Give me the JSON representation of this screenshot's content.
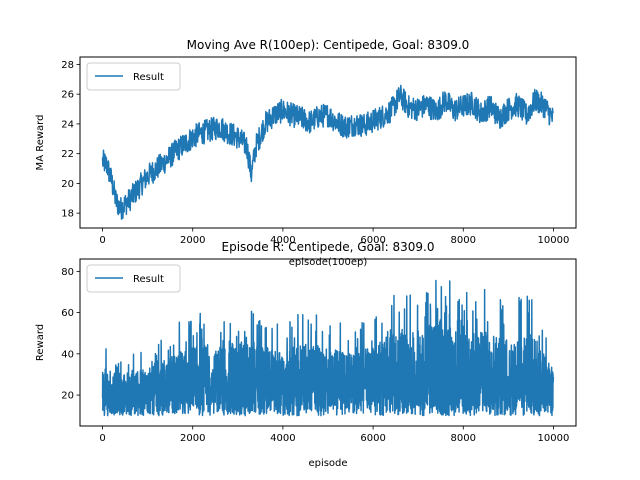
{
  "chart_data": [
    {
      "type": "line",
      "title": "Moving Ave R(100ep): Centipede, Goal: 8309.0",
      "xlabel": "episode(100ep)",
      "ylabel": "MA Reward",
      "xlim": [
        -500,
        10500
      ],
      "ylim": [
        17,
        28.5
      ],
      "xticks": [
        0,
        2000,
        4000,
        6000,
        8000,
        10000
      ],
      "yticks": [
        18,
        20,
        22,
        24,
        26,
        28
      ],
      "grid": false,
      "legend": "upper-left",
      "color": "#1f77b4",
      "series": [
        {
          "name": "Result",
          "x": [
            0,
            100,
            200,
            300,
            400,
            600,
            800,
            1000,
            1200,
            1400,
            1600,
            1800,
            2000,
            2200,
            2400,
            2600,
            2800,
            3000,
            3200,
            3300,
            3400,
            3600,
            3800,
            4000,
            4200,
            4400,
            4600,
            4800,
            5000,
            5200,
            5400,
            5600,
            5800,
            6000,
            6200,
            6400,
            6600,
            6800,
            7000,
            7200,
            7400,
            7600,
            7800,
            8000,
            8200,
            8400,
            8600,
            8800,
            9000,
            9200,
            9400,
            9600,
            9800,
            10000
          ],
          "y": [
            21.5,
            21.2,
            20.2,
            18.8,
            18.3,
            18.9,
            19.7,
            20.5,
            21.0,
            21.5,
            22.1,
            22.6,
            23.1,
            23.4,
            23.6,
            23.8,
            23.4,
            23.1,
            22.5,
            20.6,
            22.5,
            24.0,
            24.6,
            24.9,
            24.6,
            24.4,
            24.1,
            24.5,
            24.6,
            24.1,
            23.8,
            24.0,
            23.9,
            24.2,
            24.5,
            24.9,
            25.9,
            25.1,
            25.0,
            25.3,
            24.8,
            25.6,
            24.9,
            25.2,
            25.4,
            24.7,
            25.2,
            24.4,
            25.0,
            25.3,
            24.6,
            25.6,
            25.2,
            24.3
          ]
        }
      ]
    },
    {
      "type": "line",
      "title": "Episode R: Centipede, Goal: 8309.0",
      "xlabel": "episode",
      "ylabel": "Reward",
      "xlim": [
        -500,
        10500
      ],
      "ylim": [
        5,
        86
      ],
      "xticks": [
        0,
        2000,
        4000,
        6000,
        8000,
        10000
      ],
      "yticks": [
        20,
        40,
        60,
        80
      ],
      "grid": false,
      "legend": "upper-left",
      "color": "#1f77b4",
      "series": [
        {
          "name": "Result",
          "x": [
            0,
            500,
            1000,
            1500,
            2000,
            2500,
            3000,
            3500,
            4000,
            4500,
            5000,
            5500,
            6000,
            6500,
            7000,
            7500,
            8000,
            8500,
            9000,
            9500,
            10000
          ],
          "y": [
            21,
            18,
            18,
            22,
            22,
            23,
            22,
            24,
            24,
            24,
            24,
            24,
            24,
            24,
            25,
            25,
            25,
            25,
            25,
            25,
            24
          ],
          "band_low": [
            10,
            10,
            10,
            10,
            10,
            10,
            10,
            10,
            10,
            10,
            10,
            10,
            10,
            10,
            10,
            10,
            10,
            10,
            10,
            10,
            10
          ],
          "band_high": [
            43,
            40,
            45,
            52,
            62,
            58,
            66,
            60,
            56,
            63,
            58,
            55,
            60,
            72,
            68,
            83,
            70,
            72,
            66,
            70,
            40
          ]
        }
      ]
    }
  ]
}
